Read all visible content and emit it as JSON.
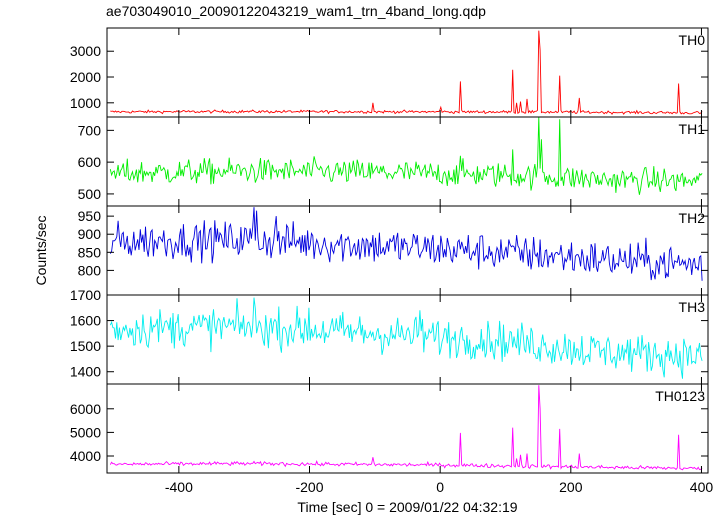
{
  "chart_data": {
    "type": "line",
    "title": "ae703049010_20090122043219_wam1_trn_4band_long.qdp",
    "xlabel": "Time [sec] 0 = 2009/01/22 04:32:19",
    "ylabel": "Counts/sec",
    "xlim": [
      -510,
      410
    ],
    "xticks": [
      -400,
      -200,
      0,
      200,
      400
    ],
    "sample_step": 2,
    "panels": [
      {
        "name": "TH0",
        "color": "#ff0000",
        "ylim": [
          450,
          3900
        ],
        "yticks": [
          1000,
          2000,
          3000
        ],
        "baseline": [
          [
            -505,
            650
          ],
          [
            -300,
            660
          ],
          [
            0,
            650
          ],
          [
            200,
            640
          ],
          [
            400,
            610
          ]
        ],
        "noise": 28,
        "spikes": [
          [
            -103,
            1000
          ],
          [
            2,
            830
          ],
          [
            31,
            1830
          ],
          [
            111,
            2280
          ],
          [
            117,
            1000
          ],
          [
            124,
            1050
          ],
          [
            133,
            1150
          ],
          [
            152,
            3800
          ],
          [
            154,
            3050
          ],
          [
            183,
            2050
          ],
          [
            213,
            1190
          ],
          [
            366,
            1750
          ],
          [
            392,
            640
          ]
        ]
      },
      {
        "name": "TH1",
        "color": "#00ee00",
        "ylim": [
          462,
          742
        ],
        "yticks": [
          500,
          600,
          700
        ],
        "baseline": [
          [
            -505,
            565
          ],
          [
            -300,
            572
          ],
          [
            -100,
            568
          ],
          [
            100,
            560
          ],
          [
            250,
            545
          ],
          [
            400,
            540
          ]
        ],
        "noise": 20,
        "spikes": [
          [
            151,
            742
          ],
          [
            155,
            672
          ],
          [
            183,
            735
          ],
          [
            31,
            620
          ],
          [
            111,
            640
          ]
        ]
      },
      {
        "name": "TH2",
        "color": "#0000dd",
        "ylim": [
          732,
          978
        ],
        "yticks": [
          800,
          850,
          900,
          950
        ],
        "baseline": [
          [
            -505,
            880
          ],
          [
            -300,
            885
          ],
          [
            -100,
            868
          ],
          [
            100,
            850
          ],
          [
            250,
            830
          ],
          [
            400,
            815
          ]
        ],
        "noise": 26,
        "spikes": [
          [
            -285,
            975
          ],
          [
            -280,
            965
          ],
          [
            -250,
            950
          ]
        ]
      },
      {
        "name": "TH3",
        "color": "#00eeee",
        "ylim": [
          1352,
          1700
        ],
        "yticks": [
          1400,
          1500,
          1600,
          1700
        ],
        "baseline": [
          [
            -505,
            1568
          ],
          [
            -300,
            1578
          ],
          [
            -100,
            1550
          ],
          [
            100,
            1520
          ],
          [
            250,
            1478
          ],
          [
            400,
            1462
          ]
        ],
        "noise": 38,
        "spikes": [
          [
            -285,
            1690
          ],
          [
            -200,
            1650
          ],
          [
            -30,
            1640
          ]
        ]
      },
      {
        "name": "TH0123",
        "color": "#ff00ff",
        "ylim": [
          3280,
          7050
        ],
        "yticks": [
          4000,
          5000,
          6000
        ],
        "baseline": [
          [
            -505,
            3650
          ],
          [
            -300,
            3680
          ],
          [
            0,
            3620
          ],
          [
            200,
            3540
          ],
          [
            400,
            3470
          ]
        ],
        "noise": 42,
        "spikes": [
          [
            -103,
            3950
          ],
          [
            31,
            4980
          ],
          [
            111,
            5200
          ],
          [
            117,
            3900
          ],
          [
            124,
            4050
          ],
          [
            133,
            4100
          ],
          [
            152,
            7000
          ],
          [
            154,
            6000
          ],
          [
            183,
            5150
          ],
          [
            213,
            4100
          ],
          [
            366,
            4900
          ]
        ]
      }
    ]
  }
}
